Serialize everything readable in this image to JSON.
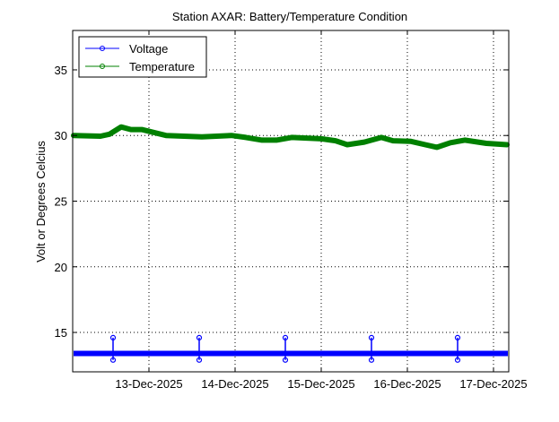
{
  "chart_data": {
    "type": "line",
    "title": "Station AXAR: Battery/Temperature Condition",
    "xlabel": "",
    "ylabel": "Volt or Degrees Celcius",
    "x_units": "hours since 12-Dec-2025 00:00",
    "xlim": [
      2.75,
      124.25
    ],
    "ylim": [
      12,
      38
    ],
    "grid": true,
    "legend_position": "top-left",
    "x_ticks": [
      {
        "value": 24,
        "label": "13-Dec-2025"
      },
      {
        "value": 48,
        "label": "14-Dec-2025"
      },
      {
        "value": 72,
        "label": "15-Dec-2025"
      },
      {
        "value": 96,
        "label": "16-Dec-2025"
      },
      {
        "value": 120,
        "label": "17-Dec-2025"
      }
    ],
    "y_ticks": [
      15,
      20,
      25,
      30,
      35
    ],
    "series": [
      {
        "name": "Voltage",
        "color": "#0000ff",
        "points": [
          [
            3,
            13.4
          ],
          [
            14,
            13.4
          ],
          [
            14,
            14.6
          ],
          [
            14,
            12.9
          ],
          [
            14,
            13.4
          ],
          [
            38,
            13.4
          ],
          [
            38,
            14.6
          ],
          [
            38,
            12.9
          ],
          [
            38,
            13.4
          ],
          [
            62,
            13.4
          ],
          [
            62,
            14.6
          ],
          [
            62,
            12.9
          ],
          [
            62,
            13.4
          ],
          [
            86,
            13.4
          ],
          [
            86,
            14.6
          ],
          [
            86,
            12.9
          ],
          [
            86,
            13.4
          ],
          [
            110,
            13.4
          ],
          [
            110,
            14.6
          ],
          [
            110,
            12.9
          ],
          [
            110,
            13.4
          ],
          [
            124,
            13.4
          ]
        ]
      },
      {
        "name": "Temperature",
        "color": "#008000",
        "points": [
          [
            3,
            30.0
          ],
          [
            10.5,
            29.95
          ],
          [
            13,
            30.1
          ],
          [
            16.25,
            30.65
          ],
          [
            19,
            30.45
          ],
          [
            22,
            30.45
          ],
          [
            28.75,
            30.0
          ],
          [
            38.75,
            29.9
          ],
          [
            47,
            30.0
          ],
          [
            51,
            29.85
          ],
          [
            55.5,
            29.65
          ],
          [
            59.5,
            29.65
          ],
          [
            63.75,
            29.85
          ],
          [
            72,
            29.75
          ],
          [
            76,
            29.6
          ],
          [
            79.25,
            29.3
          ],
          [
            84,
            29.5
          ],
          [
            88.75,
            29.85
          ],
          [
            92,
            29.6
          ],
          [
            97,
            29.55
          ],
          [
            101,
            29.3
          ],
          [
            104.25,
            29.1
          ],
          [
            108,
            29.45
          ],
          [
            112,
            29.65
          ],
          [
            118,
            29.4
          ],
          [
            123.75,
            29.3
          ]
        ]
      }
    ]
  }
}
